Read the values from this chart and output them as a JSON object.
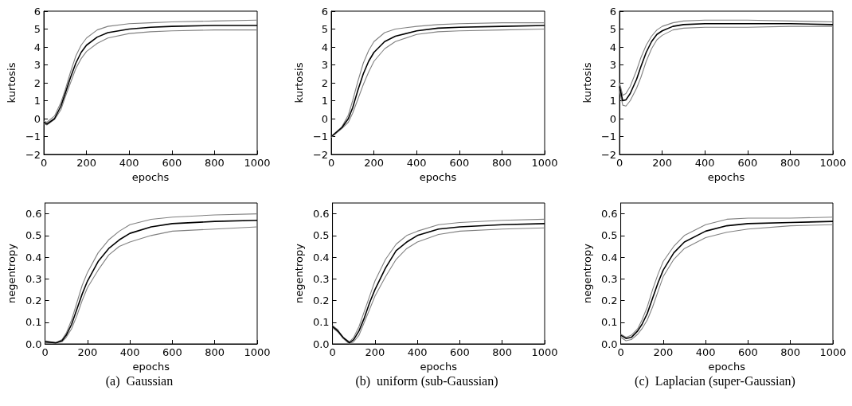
{
  "chart_data": [
    {
      "type": "line",
      "xlabel": "epochs",
      "ylabel": "kurtosis",
      "xlim": [
        0,
        1000
      ],
      "ylim": [
        -2,
        6
      ],
      "xticks": [
        0,
        200,
        400,
        600,
        800,
        1000
      ],
      "yticks": [
        {
          "value": -2,
          "label": "−2"
        },
        {
          "value": -1,
          "label": "−1"
        },
        0,
        1,
        2,
        3,
        4,
        5,
        6
      ],
      "x": [
        0,
        15,
        50,
        80,
        100,
        125,
        150,
        175,
        200,
        250,
        300,
        400,
        500,
        600,
        800,
        1000
      ],
      "series": [
        {
          "color": "#808080",
          "values": [
            -0.15,
            -0.2,
            0.15,
            0.9,
            1.6,
            2.6,
            3.5,
            4.1,
            4.5,
            4.95,
            5.15,
            5.3,
            5.35,
            5.4,
            5.45,
            5.5
          ]
        },
        {
          "color": "#000000",
          "values": [
            -0.2,
            -0.3,
            0,
            0.7,
            1.4,
            2.3,
            3.1,
            3.7,
            4.1,
            4.55,
            4.8,
            5.0,
            5.1,
            5.15,
            5.2,
            5.2
          ]
        },
        {
          "color": "#808080",
          "values": [
            -0.3,
            -0.35,
            -0.05,
            0.5,
            1.2,
            2.0,
            2.8,
            3.35,
            3.75,
            4.2,
            4.5,
            4.75,
            4.85,
            4.9,
            4.95,
            4.95
          ]
        }
      ]
    },
    {
      "type": "line",
      "xlabel": "epochs",
      "ylabel": "kurtosis",
      "xlim": [
        0,
        1000
      ],
      "ylim": [
        -2,
        6
      ],
      "xticks": [
        0,
        200,
        400,
        600,
        800,
        1000
      ],
      "yticks": [
        {
          "value": -2,
          "label": "−2"
        },
        {
          "value": -1,
          "label": "−1"
        },
        0,
        1,
        2,
        3,
        4,
        5,
        6
      ],
      "x": [
        0,
        50,
        80,
        100,
        125,
        150,
        175,
        200,
        250,
        300,
        400,
        500,
        600,
        800,
        1000
      ],
      "series": [
        {
          "color": "#808080",
          "values": [
            -1,
            -0.45,
            0.2,
            1.0,
            2.1,
            3.1,
            3.8,
            4.3,
            4.8,
            5.0,
            5.15,
            5.25,
            5.3,
            5.35,
            5.35
          ]
        },
        {
          "color": "#000000",
          "values": [
            -1,
            -0.5,
            0,
            0.6,
            1.6,
            2.5,
            3.2,
            3.7,
            4.3,
            4.6,
            4.9,
            5.05,
            5.1,
            5.15,
            5.2
          ]
        },
        {
          "color": "#808080",
          "values": [
            -1.05,
            -0.55,
            -0.2,
            0.3,
            1.1,
            1.9,
            2.6,
            3.2,
            3.9,
            4.3,
            4.7,
            4.85,
            4.9,
            4.95,
            5.0
          ]
        }
      ]
    },
    {
      "type": "line",
      "xlabel": "epochs",
      "ylabel": "kurtosis",
      "xlim": [
        0,
        1000
      ],
      "ylim": [
        -2,
        6
      ],
      "xticks": [
        0,
        200,
        400,
        600,
        800,
        1000
      ],
      "yticks": [
        {
          "value": -2,
          "label": "−2"
        },
        {
          "value": -1,
          "label": "−1"
        },
        0,
        1,
        2,
        3,
        4,
        5,
        6
      ],
      "x": [
        0,
        15,
        30,
        50,
        80,
        100,
        125,
        150,
        175,
        200,
        250,
        300,
        400,
        600,
        800,
        1000
      ],
      "series": [
        {
          "color": "#808080",
          "values": [
            2.0,
            1.3,
            1.4,
            1.8,
            2.7,
            3.4,
            4.1,
            4.6,
            4.95,
            5.15,
            5.35,
            5.45,
            5.5,
            5.5,
            5.45,
            5.4
          ]
        },
        {
          "color": "#000000",
          "values": [
            1.8,
            1.0,
            1.05,
            1.4,
            2.2,
            2.9,
            3.7,
            4.3,
            4.7,
            4.9,
            5.15,
            5.25,
            5.3,
            5.3,
            5.3,
            5.25
          ]
        },
        {
          "color": "#808080",
          "values": [
            1.6,
            0.75,
            0.7,
            1.0,
            1.7,
            2.3,
            3.2,
            3.9,
            4.4,
            4.65,
            4.95,
            5.05,
            5.1,
            5.1,
            5.15,
            5.15
          ]
        }
      ]
    },
    {
      "type": "line",
      "xlabel": "epochs",
      "ylabel": "negentropy",
      "xlim": [
        0,
        1000
      ],
      "ylim": [
        0,
        0.65
      ],
      "xticks": [
        0,
        200,
        400,
        600,
        800,
        1000
      ],
      "yticks": [
        {
          "value": 0,
          "label": "0.0"
        },
        0.1,
        0.2,
        0.3,
        0.4,
        0.5,
        0.6
      ],
      "annotations": [
        "(a)  Gaussian"
      ],
      "x": [
        0,
        50,
        80,
        100,
        125,
        150,
        175,
        200,
        250,
        300,
        350,
        400,
        500,
        600,
        800,
        1000
      ],
      "series": [
        {
          "color": "#808080",
          "values": [
            0.015,
            0.005,
            0.02,
            0.05,
            0.11,
            0.19,
            0.27,
            0.33,
            0.42,
            0.48,
            0.52,
            0.55,
            0.575,
            0.585,
            0.595,
            0.6
          ]
        },
        {
          "color": "#000000",
          "values": [
            0.01,
            0.005,
            0.015,
            0.04,
            0.09,
            0.16,
            0.23,
            0.29,
            0.38,
            0.44,
            0.48,
            0.51,
            0.54,
            0.555,
            0.565,
            0.57
          ]
        },
        {
          "color": "#808080",
          "values": [
            0.005,
            0.005,
            0.01,
            0.03,
            0.07,
            0.13,
            0.2,
            0.26,
            0.34,
            0.41,
            0.45,
            0.47,
            0.5,
            0.52,
            0.53,
            0.54
          ]
        }
      ]
    },
    {
      "type": "line",
      "xlabel": "epochs",
      "ylabel": "negentropy",
      "xlim": [
        0,
        1000
      ],
      "ylim": [
        0,
        0.65
      ],
      "xticks": [
        0,
        200,
        400,
        600,
        800,
        1000
      ],
      "yticks": [
        {
          "value": 0,
          "label": "0.0"
        },
        0.1,
        0.2,
        0.3,
        0.4,
        0.5,
        0.6
      ],
      "annotations": [
        "(b)  uniform (sub-Gaussian)"
      ],
      "x": [
        0,
        25,
        50,
        80,
        100,
        125,
        150,
        175,
        200,
        250,
        300,
        350,
        400,
        500,
        600,
        800,
        1000
      ],
      "series": [
        {
          "color": "#808080",
          "values": [
            0.085,
            0.065,
            0.03,
            0.01,
            0.03,
            0.08,
            0.15,
            0.22,
            0.29,
            0.39,
            0.46,
            0.5,
            0.52,
            0.55,
            0.56,
            0.57,
            0.575
          ]
        },
        {
          "color": "#000000",
          "values": [
            0.08,
            0.06,
            0.03,
            0.005,
            0.02,
            0.06,
            0.12,
            0.19,
            0.25,
            0.35,
            0.43,
            0.47,
            0.5,
            0.53,
            0.54,
            0.55,
            0.555
          ]
        },
        {
          "color": "#808080",
          "values": [
            0.075,
            0.055,
            0.025,
            0.0,
            0.01,
            0.04,
            0.1,
            0.16,
            0.22,
            0.31,
            0.39,
            0.44,
            0.47,
            0.505,
            0.52,
            0.53,
            0.535
          ]
        }
      ]
    },
    {
      "type": "line",
      "xlabel": "epochs",
      "ylabel": "negentropy",
      "xlim": [
        0,
        1000
      ],
      "ylim": [
        0,
        0.65
      ],
      "xticks": [
        0,
        200,
        400,
        600,
        800,
        1000
      ],
      "yticks": [
        {
          "value": 0,
          "label": "0.0"
        },
        0.1,
        0.2,
        0.3,
        0.4,
        0.5,
        0.6
      ],
      "annotations": [
        "(c)  Laplacian (super-Gaussian)"
      ],
      "x": [
        0,
        25,
        50,
        80,
        100,
        125,
        150,
        175,
        200,
        250,
        300,
        400,
        500,
        600,
        800,
        1000
      ],
      "series": [
        {
          "color": "#808080",
          "values": [
            0.045,
            0.03,
            0.04,
            0.07,
            0.11,
            0.17,
            0.25,
            0.32,
            0.38,
            0.45,
            0.5,
            0.55,
            0.575,
            0.58,
            0.58,
            0.585
          ]
        },
        {
          "color": "#000000",
          "values": [
            0.04,
            0.025,
            0.03,
            0.06,
            0.09,
            0.14,
            0.21,
            0.28,
            0.34,
            0.42,
            0.47,
            0.52,
            0.545,
            0.555,
            0.56,
            0.565
          ]
        },
        {
          "color": "#808080",
          "values": [
            0.03,
            0.015,
            0.02,
            0.045,
            0.07,
            0.11,
            0.17,
            0.24,
            0.31,
            0.39,
            0.44,
            0.49,
            0.515,
            0.53,
            0.545,
            0.55
          ]
        }
      ]
    }
  ]
}
